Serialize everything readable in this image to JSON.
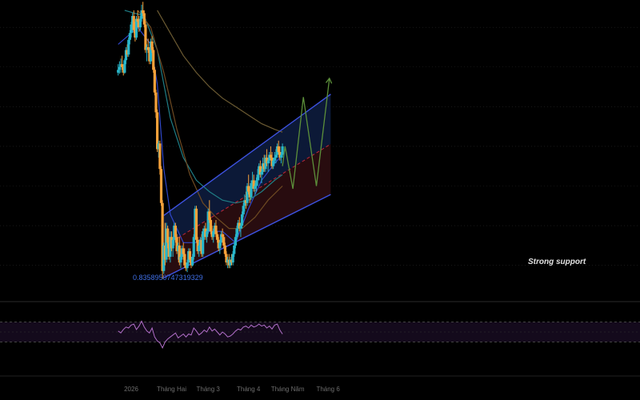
{
  "colors": {
    "background": "#000000",
    "up_candle": "#29b6c9",
    "down_candle": "#f5a13a",
    "channel_line": "#3d52e0",
    "channel_upper_fill": "#0d1a3a",
    "channel_lower_fill": "#2a0d10",
    "midline": "#c0283a",
    "ma_short": "#2e46c8",
    "ma_mid": "#1f7e86",
    "ma_long": "#6e4a22",
    "ma_longest": "#6b5a32",
    "projection": "#5c8f3a",
    "rsi_line": "#b26fc9",
    "rsi_band": "#140a1c",
    "label_blue": "#3f6fe6",
    "label_white": "#e0e0e0"
  },
  "labels": {
    "low_value": "0.8358950747319329",
    "support": "Strong support"
  },
  "chart_data": {
    "type": "candlestick",
    "title": "",
    "x_axis": {
      "ticks": [
        {
          "label": "2026",
          "t": 0.0
        },
        {
          "label": "Tháng Hai",
          "t": 31.0
        },
        {
          "label": "Tháng 3",
          "t": 59.0
        },
        {
          "label": "Tháng 4",
          "t": 90.0
        },
        {
          "label": "Tháng Năm",
          "t": 120.0
        },
        {
          "label": "Tháng 6",
          "t": 151.0
        }
      ]
    },
    "price_range": [
      0.82,
      1.3
    ],
    "candles": [
      [
        -10,
        1.2,
        1.215,
        1.195,
        1.205
      ],
      [
        -9,
        1.205,
        1.22,
        1.198,
        1.21
      ],
      [
        -8,
        1.21,
        1.225,
        1.2,
        1.215
      ],
      [
        -7,
        1.215,
        1.23,
        1.205,
        1.21
      ],
      [
        -6,
        1.21,
        1.215,
        1.195,
        1.2
      ],
      [
        -5,
        1.2,
        1.225,
        1.198,
        1.222
      ],
      [
        -4,
        1.222,
        1.245,
        1.215,
        1.24
      ],
      [
        -3,
        1.24,
        1.25,
        1.228,
        1.232
      ],
      [
        -2,
        1.232,
        1.262,
        1.228,
        1.258
      ],
      [
        -1,
        1.258,
        1.275,
        1.25,
        1.27
      ],
      [
        0,
        1.27,
        1.29,
        1.262,
        1.285
      ],
      [
        1,
        1.285,
        1.305,
        1.27,
        1.3
      ],
      [
        2,
        1.3,
        1.31,
        1.27,
        1.275
      ],
      [
        3,
        1.275,
        1.29,
        1.255,
        1.262
      ],
      [
        4,
        1.262,
        1.3,
        1.258,
        1.295
      ],
      [
        5,
        1.295,
        1.31,
        1.28,
        1.29
      ],
      [
        6,
        1.29,
        1.3,
        1.272,
        1.28
      ],
      [
        7,
        1.28,
        1.3,
        1.275,
        1.295
      ],
      [
        8,
        1.295,
        1.32,
        1.29,
        1.31
      ],
      [
        9,
        1.31,
        1.325,
        1.3,
        1.305
      ],
      [
        10,
        1.305,
        1.31,
        1.28,
        1.285
      ],
      [
        11,
        1.285,
        1.29,
        1.235,
        1.24
      ],
      [
        12,
        1.24,
        1.25,
        1.22,
        1.245
      ],
      [
        13,
        1.245,
        1.26,
        1.235,
        1.24
      ],
      [
        14,
        1.24,
        1.245,
        1.215,
        1.22
      ],
      [
        15,
        1.22,
        1.26,
        1.215,
        1.255
      ],
      [
        16,
        1.255,
        1.265,
        1.235,
        1.24
      ],
      [
        17,
        1.24,
        1.245,
        1.2,
        1.205
      ],
      [
        18,
        1.205,
        1.21,
        1.16,
        1.165
      ],
      [
        19,
        1.165,
        1.17,
        1.12,
        1.13
      ],
      [
        20,
        1.13,
        1.135,
        1.06,
        1.065
      ],
      [
        21,
        1.065,
        1.08,
        1.05,
        1.075
      ],
      [
        22,
        1.075,
        1.08,
        1.02,
        1.03
      ],
      [
        23,
        1.03,
        1.035,
        0.965,
        0.97
      ],
      [
        24,
        0.97,
        0.975,
        0.836,
        0.85
      ],
      [
        25,
        0.85,
        0.9,
        0.845,
        0.895
      ],
      [
        26,
        0.895,
        0.935,
        0.86,
        0.87
      ],
      [
        27,
        0.87,
        0.935,
        0.865,
        0.925
      ],
      [
        28,
        0.925,
        0.93,
        0.89,
        0.9
      ],
      [
        29,
        0.9,
        0.91,
        0.87,
        0.875
      ],
      [
        30,
        0.875,
        0.92,
        0.865,
        0.91
      ],
      [
        31,
        0.91,
        0.92,
        0.885,
        0.89
      ],
      [
        32,
        0.89,
        0.91,
        0.875,
        0.905
      ],
      [
        33,
        0.905,
        0.935,
        0.895,
        0.93
      ],
      [
        34,
        0.93,
        0.935,
        0.9,
        0.91
      ],
      [
        35,
        0.91,
        0.915,
        0.88,
        0.885
      ],
      [
        36,
        0.885,
        0.9,
        0.87,
        0.895
      ],
      [
        37,
        0.895,
        0.91,
        0.86,
        0.865
      ],
      [
        38,
        0.865,
        0.88,
        0.855,
        0.875
      ],
      [
        39,
        0.875,
        0.895,
        0.87,
        0.89
      ],
      [
        40,
        0.89,
        0.9,
        0.87,
        0.88
      ],
      [
        41,
        0.88,
        0.89,
        0.855,
        0.86
      ],
      [
        42,
        0.86,
        0.865,
        0.85,
        0.855
      ],
      [
        43,
        0.855,
        0.87,
        0.848,
        0.865
      ],
      [
        44,
        0.865,
        0.89,
        0.86,
        0.885
      ],
      [
        45,
        0.885,
        0.89,
        0.865,
        0.87
      ],
      [
        46,
        0.87,
        0.875,
        0.855,
        0.86
      ],
      [
        47,
        0.86,
        0.88,
        0.858,
        0.875
      ],
      [
        48,
        0.875,
        0.915,
        0.87,
        0.91
      ],
      [
        49,
        0.91,
        0.965,
        0.905,
        0.96
      ],
      [
        50,
        0.96,
        0.965,
        0.9,
        0.905
      ],
      [
        51,
        0.905,
        0.91,
        0.88,
        0.885
      ],
      [
        52,
        0.885,
        0.9,
        0.875,
        0.895
      ],
      [
        53,
        0.895,
        0.91,
        0.885,
        0.905
      ],
      [
        54,
        0.905,
        0.915,
        0.875,
        0.88
      ],
      [
        55,
        0.88,
        0.925,
        0.875,
        0.92
      ],
      [
        56,
        0.92,
        0.93,
        0.905,
        0.925
      ],
      [
        57,
        0.925,
        0.935,
        0.905,
        0.91
      ],
      [
        58,
        0.91,
        0.925,
        0.9,
        0.92
      ],
      [
        59,
        0.92,
        0.96,
        0.915,
        0.955
      ],
      [
        60,
        0.955,
        0.975,
        0.935,
        0.94
      ],
      [
        61,
        0.94,
        0.945,
        0.915,
        0.92
      ],
      [
        62,
        0.92,
        0.93,
        0.905,
        0.91
      ],
      [
        63,
        0.91,
        0.925,
        0.9,
        0.92
      ],
      [
        64,
        0.92,
        0.935,
        0.915,
        0.93
      ],
      [
        65,
        0.93,
        0.94,
        0.91,
        0.915
      ],
      [
        66,
        0.915,
        0.92,
        0.9,
        0.905
      ],
      [
        67,
        0.905,
        0.91,
        0.885,
        0.89
      ],
      [
        68,
        0.89,
        0.905,
        0.88,
        0.9
      ],
      [
        69,
        0.9,
        0.92,
        0.895,
        0.915
      ],
      [
        70,
        0.915,
        0.925,
        0.9,
        0.91
      ],
      [
        71,
        0.91,
        0.915,
        0.89,
        0.895
      ],
      [
        72,
        0.895,
        0.9,
        0.875,
        0.88
      ],
      [
        73,
        0.88,
        0.885,
        0.86,
        0.865
      ],
      [
        74,
        0.865,
        0.875,
        0.855,
        0.87
      ],
      [
        75,
        0.87,
        0.88,
        0.855,
        0.86
      ],
      [
        76,
        0.86,
        0.875,
        0.855,
        0.87
      ],
      [
        77,
        0.87,
        0.88,
        0.86,
        0.865
      ],
      [
        78,
        0.865,
        0.885,
        0.86,
        0.88
      ],
      [
        79,
        0.88,
        0.9,
        0.875,
        0.895
      ],
      [
        80,
        0.895,
        0.915,
        0.89,
        0.91
      ],
      [
        81,
        0.91,
        0.93,
        0.905,
        0.925
      ],
      [
        82,
        0.925,
        0.94,
        0.915,
        0.935
      ],
      [
        83,
        0.935,
        0.945,
        0.92,
        0.925
      ],
      [
        84,
        0.925,
        0.935,
        0.91,
        0.93
      ],
      [
        85,
        0.93,
        0.955,
        0.925,
        0.95
      ],
      [
        86,
        0.95,
        0.97,
        0.945,
        0.965
      ],
      [
        87,
        0.965,
        0.985,
        0.955,
        0.975
      ],
      [
        88,
        0.975,
        0.99,
        0.96,
        0.97
      ],
      [
        89,
        0.97,
        1.005,
        0.965,
        1.0
      ],
      [
        90,
        1.0,
        1.02,
        0.985,
        0.99
      ],
      [
        91,
        0.99,
        1.0,
        0.97,
        0.98
      ],
      [
        92,
        0.98,
        1.01,
        0.975,
        1.005
      ],
      [
        93,
        1.005,
        1.025,
        0.995,
        1.01
      ],
      [
        94,
        1.01,
        1.02,
        0.99,
        0.995
      ],
      [
        95,
        0.995,
        1.005,
        0.985,
        1.0
      ],
      [
        96,
        1.0,
        1.015,
        0.99,
        1.01
      ],
      [
        97,
        1.01,
        1.03,
        1.0,
        1.02
      ],
      [
        98,
        1.02,
        1.04,
        1.01,
        1.035
      ],
      [
        99,
        1.035,
        1.045,
        1.015,
        1.02
      ],
      [
        100,
        1.02,
        1.03,
        1.005,
        1.025
      ],
      [
        101,
        1.025,
        1.05,
        1.02,
        1.04
      ],
      [
        102,
        1.04,
        1.055,
        1.025,
        1.03
      ],
      [
        103,
        1.03,
        1.055,
        1.025,
        1.05
      ],
      [
        104,
        1.05,
        1.065,
        1.035,
        1.04
      ],
      [
        105,
        1.04,
        1.05,
        1.025,
        1.045
      ],
      [
        106,
        1.045,
        1.06,
        1.04,
        1.055
      ],
      [
        107,
        1.055,
        1.07,
        1.045,
        1.05
      ],
      [
        108,
        1.05,
        1.06,
        1.03,
        1.035
      ],
      [
        109,
        1.035,
        1.05,
        1.03,
        1.045
      ],
      [
        110,
        1.045,
        1.06,
        1.04,
        1.05
      ],
      [
        111,
        1.05,
        1.065,
        1.04,
        1.055
      ],
      [
        112,
        1.055,
        1.075,
        1.05,
        1.07
      ],
      [
        113,
        1.07,
        1.08,
        1.055,
        1.06
      ],
      [
        114,
        1.06,
        1.07,
        1.045,
        1.05
      ],
      [
        115,
        1.05,
        1.06,
        1.04,
        1.055
      ],
      [
        116,
        1.055,
        1.075,
        1.05,
        1.07
      ]
    ],
    "channel": {
      "lower": [
        [
          25,
          0.838
        ],
        [
          153,
          0.985
        ]
      ],
      "upper": [
        [
          25,
          0.948
        ],
        [
          153,
          1.162
        ]
      ],
      "mid": [
        [
          25,
          0.893
        ],
        [
          153,
          1.074
        ]
      ]
    },
    "moving_averages": [
      {
        "color_key": "ma_short",
        "points": [
          [
            -10,
            1.25
          ],
          [
            5,
            1.28
          ],
          [
            15,
            1.25
          ],
          [
            20,
            1.18
          ],
          [
            25,
            1.03
          ],
          [
            30,
            0.95
          ],
          [
            40,
            0.9
          ],
          [
            50,
            0.9
          ],
          [
            60,
            0.92
          ],
          [
            70,
            0.92
          ],
          [
            80,
            0.9
          ],
          [
            90,
            0.96
          ],
          [
            100,
            1.01
          ],
          [
            110,
            1.04
          ],
          [
            116,
            1.055
          ]
        ]
      },
      {
        "color_key": "ma_mid",
        "points": [
          [
            -5,
            1.31
          ],
          [
            10,
            1.3
          ],
          [
            20,
            1.24
          ],
          [
            30,
            1.12
          ],
          [
            40,
            1.05
          ],
          [
            50,
            1.01
          ],
          [
            60,
            0.99
          ],
          [
            70,
            0.975
          ],
          [
            80,
            0.97
          ],
          [
            90,
            0.975
          ],
          [
            100,
            0.99
          ],
          [
            110,
            1.01
          ],
          [
            116,
            1.02
          ]
        ]
      },
      {
        "color_key": "ma_long",
        "points": [
          [
            5,
            1.31
          ],
          [
            15,
            1.28
          ],
          [
            25,
            1.2
          ],
          [
            35,
            1.1
          ],
          [
            45,
            1.02
          ],
          [
            55,
            0.97
          ],
          [
            65,
            0.945
          ],
          [
            75,
            0.925
          ],
          [
            85,
            0.925
          ],
          [
            95,
            0.945
          ],
          [
            105,
            0.975
          ],
          [
            116,
            1.0
          ]
        ]
      },
      {
        "color_key": "ma_longest",
        "points": [
          [
            20,
            1.31
          ],
          [
            30,
            1.27
          ],
          [
            40,
            1.23
          ],
          [
            50,
            1.2
          ],
          [
            60,
            1.175
          ],
          [
            70,
            1.155
          ],
          [
            80,
            1.14
          ],
          [
            90,
            1.125
          ],
          [
            100,
            1.11
          ],
          [
            110,
            1.1
          ],
          [
            116,
            1.095
          ]
        ]
      }
    ],
    "projection": [
      [
        116,
        1.035
      ],
      [
        118,
        1.07
      ],
      [
        124,
        0.995
      ],
      [
        132,
        1.157
      ],
      [
        142,
        1.0
      ],
      [
        152,
        1.19
      ]
    ],
    "rsi": {
      "range": [
        0,
        100
      ],
      "bands": [
        70,
        30
      ],
      "values": [
        [
          -10,
          52
        ],
        [
          -8,
          48
        ],
        [
          -6,
          55
        ],
        [
          -4,
          60
        ],
        [
          -2,
          58
        ],
        [
          0,
          64
        ],
        [
          2,
          66
        ],
        [
          4,
          55
        ],
        [
          6,
          62
        ],
        [
          8,
          72
        ],
        [
          10,
          60
        ],
        [
          12,
          52
        ],
        [
          14,
          48
        ],
        [
          16,
          58
        ],
        [
          18,
          40
        ],
        [
          20,
          32
        ],
        [
          22,
          28
        ],
        [
          24,
          18
        ],
        [
          26,
          30
        ],
        [
          28,
          36
        ],
        [
          30,
          40
        ],
        [
          32,
          44
        ],
        [
          34,
          48
        ],
        [
          36,
          38
        ],
        [
          38,
          42
        ],
        [
          40,
          46
        ],
        [
          42,
          40
        ],
        [
          44,
          46
        ],
        [
          46,
          44
        ],
        [
          48,
          58
        ],
        [
          50,
          52
        ],
        [
          52,
          44
        ],
        [
          54,
          48
        ],
        [
          56,
          54
        ],
        [
          58,
          50
        ],
        [
          60,
          60
        ],
        [
          62,
          52
        ],
        [
          64,
          56
        ],
        [
          66,
          50
        ],
        [
          68,
          44
        ],
        [
          70,
          50
        ],
        [
          72,
          46
        ],
        [
          74,
          40
        ],
        [
          76,
          42
        ],
        [
          78,
          46
        ],
        [
          80,
          52
        ],
        [
          82,
          56
        ],
        [
          84,
          54
        ],
        [
          86,
          60
        ],
        [
          88,
          62
        ],
        [
          90,
          58
        ],
        [
          92,
          64
        ],
        [
          94,
          60
        ],
        [
          96,
          62
        ],
        [
          98,
          66
        ],
        [
          100,
          62
        ],
        [
          102,
          64
        ],
        [
          104,
          58
        ],
        [
          106,
          62
        ],
        [
          108,
          56
        ],
        [
          110,
          64
        ],
        [
          112,
          66
        ],
        [
          114,
          54
        ],
        [
          116,
          46
        ]
      ]
    }
  }
}
